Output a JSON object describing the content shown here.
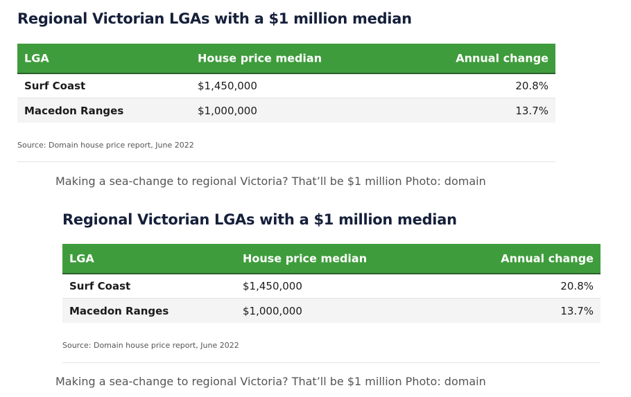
{
  "figures": [
    {
      "title": "Regional Victorian LGAs with a $1 million median",
      "table": {
        "header": [
          "LGA",
          "House price median",
          "Annual change"
        ],
        "rows": [
          [
            "Surf Coast",
            "$1,450,000",
            "20.8%"
          ],
          [
            "Macedon Ranges",
            "$1,000,000",
            "13.7%"
          ]
        ]
      },
      "source": "Source: Domain house price report, June 2022",
      "caption": "Making a sea-change to regional Victoria? That’ll be $1 million Photo: domain"
    },
    {
      "title": "Regional Victorian LGAs with a $1 million median",
      "table": {
        "header": [
          "LGA",
          "House price median",
          "Annual change"
        ],
        "rows": [
          [
            "Surf Coast",
            "$1,450,000",
            "20.8%"
          ],
          [
            "Macedon Ranges",
            "$1,000,000",
            "13.7%"
          ]
        ]
      },
      "source": "Source: Domain house price report, June 2022",
      "caption": "Making a sea-change to regional Victoria? That’ll be $1 million Photo: domain"
    }
  ]
}
